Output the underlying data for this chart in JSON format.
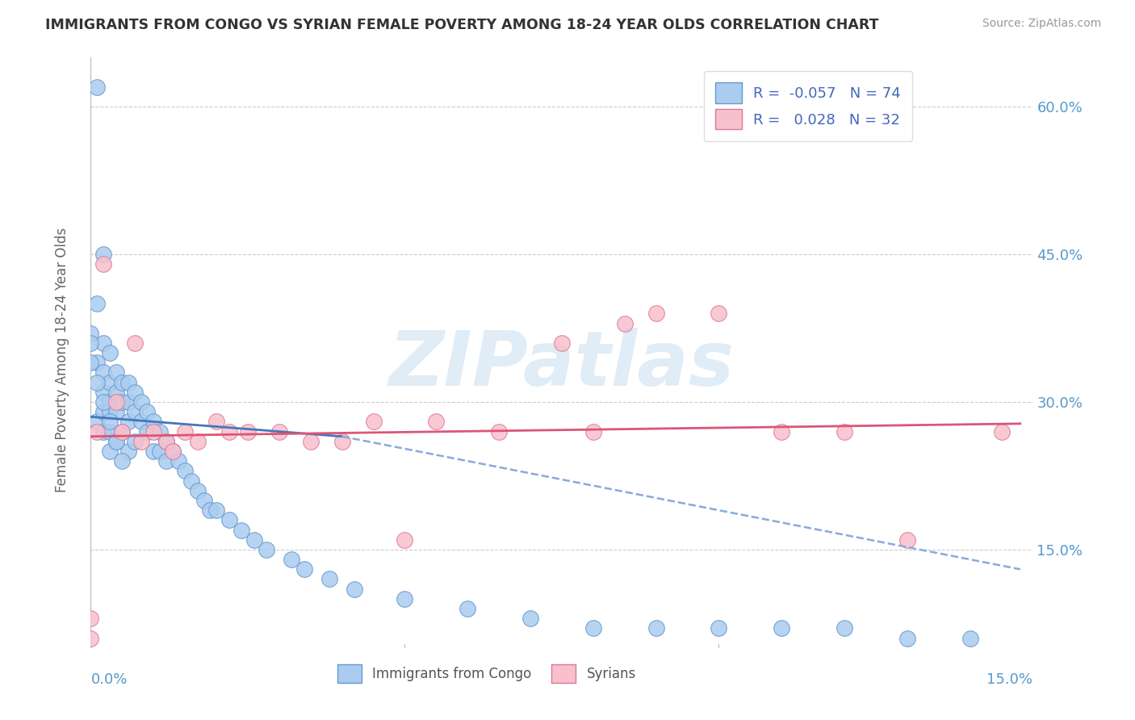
{
  "title": "IMMIGRANTS FROM CONGO VS SYRIAN FEMALE POVERTY AMONG 18-24 YEAR OLDS CORRELATION CHART",
  "source": "Source: ZipAtlas.com",
  "ylabel": "Female Poverty Among 18-24 Year Olds",
  "xlim": [
    0,
    0.15
  ],
  "ylim": [
    0.05,
    0.65
  ],
  "yticks": [
    0.15,
    0.3,
    0.45,
    0.6
  ],
  "ytick_labels": [
    "15.0%",
    "30.0%",
    "45.0%",
    "60.0%"
  ],
  "legend_label1": "Immigrants from Congo",
  "legend_label2": "Syrians",
  "R1": -0.057,
  "N1": 74,
  "R2": 0.028,
  "N2": 32,
  "color_congo_fill": "#aaccf0",
  "color_congo_edge": "#6699cc",
  "color_syrian_fill": "#f8c0cc",
  "color_syrian_edge": "#dd7799",
  "color_line_congo_solid": "#4477bb",
  "color_line_congo_dash": "#88aadd",
  "color_line_syrian": "#dd5577",
  "background_color": "#ffffff",
  "grid_color": "#cccccc",
  "watermark_text": "ZIPatlas",
  "congo_x": [
    0.001,
    0.001,
    0.001,
    0.001,
    0.002,
    0.002,
    0.002,
    0.002,
    0.002,
    0.003,
    0.003,
    0.003,
    0.003,
    0.003,
    0.003,
    0.004,
    0.004,
    0.004,
    0.004,
    0.005,
    0.005,
    0.005,
    0.006,
    0.006,
    0.006,
    0.006,
    0.007,
    0.007,
    0.007,
    0.008,
    0.008,
    0.009,
    0.009,
    0.01,
    0.01,
    0.011,
    0.011,
    0.012,
    0.012,
    0.013,
    0.014,
    0.015,
    0.016,
    0.017,
    0.018,
    0.019,
    0.02,
    0.022,
    0.024,
    0.026,
    0.028,
    0.032,
    0.034,
    0.038,
    0.042,
    0.05,
    0.06,
    0.07,
    0.08,
    0.09,
    0.1,
    0.11,
    0.12,
    0.13,
    0.14,
    0.0,
    0.0,
    0.0,
    0.001,
    0.002,
    0.003,
    0.004,
    0.005,
    0.002
  ],
  "congo_y": [
    0.62,
    0.4,
    0.34,
    0.28,
    0.36,
    0.33,
    0.31,
    0.29,
    0.27,
    0.35,
    0.32,
    0.3,
    0.29,
    0.27,
    0.25,
    0.33,
    0.31,
    0.29,
    0.26,
    0.32,
    0.3,
    0.27,
    0.32,
    0.3,
    0.28,
    0.25,
    0.31,
    0.29,
    0.26,
    0.3,
    0.28,
    0.29,
    0.27,
    0.28,
    0.25,
    0.27,
    0.25,
    0.26,
    0.24,
    0.25,
    0.24,
    0.23,
    0.22,
    0.21,
    0.2,
    0.19,
    0.19,
    0.18,
    0.17,
    0.16,
    0.15,
    0.14,
    0.13,
    0.12,
    0.11,
    0.1,
    0.09,
    0.08,
    0.07,
    0.07,
    0.07,
    0.07,
    0.07,
    0.06,
    0.06,
    0.37,
    0.36,
    0.34,
    0.32,
    0.3,
    0.28,
    0.26,
    0.24,
    0.45
  ],
  "syrian_x": [
    0.0,
    0.0,
    0.001,
    0.002,
    0.004,
    0.005,
    0.007,
    0.008,
    0.01,
    0.012,
    0.013,
    0.015,
    0.017,
    0.02,
    0.022,
    0.025,
    0.03,
    0.035,
    0.04,
    0.045,
    0.05,
    0.055,
    0.065,
    0.075,
    0.08,
    0.085,
    0.09,
    0.1,
    0.11,
    0.12,
    0.13,
    0.145
  ],
  "syrian_y": [
    0.08,
    0.06,
    0.27,
    0.44,
    0.3,
    0.27,
    0.36,
    0.26,
    0.27,
    0.26,
    0.25,
    0.27,
    0.26,
    0.28,
    0.27,
    0.27,
    0.27,
    0.26,
    0.26,
    0.28,
    0.16,
    0.28,
    0.27,
    0.36,
    0.27,
    0.38,
    0.39,
    0.39,
    0.27,
    0.27,
    0.16,
    0.27
  ],
  "trend_congo_x0": 0.0,
  "trend_congo_y0": 0.285,
  "trend_congo_x1": 0.04,
  "trend_congo_y1": 0.265,
  "trend_congo_dash_x0": 0.04,
  "trend_congo_dash_y0": 0.265,
  "trend_congo_dash_x1": 0.148,
  "trend_congo_dash_y1": 0.13,
  "trend_syrian_x0": 0.0,
  "trend_syrian_y0": 0.265,
  "trend_syrian_x1": 0.148,
  "trend_syrian_y1": 0.278
}
